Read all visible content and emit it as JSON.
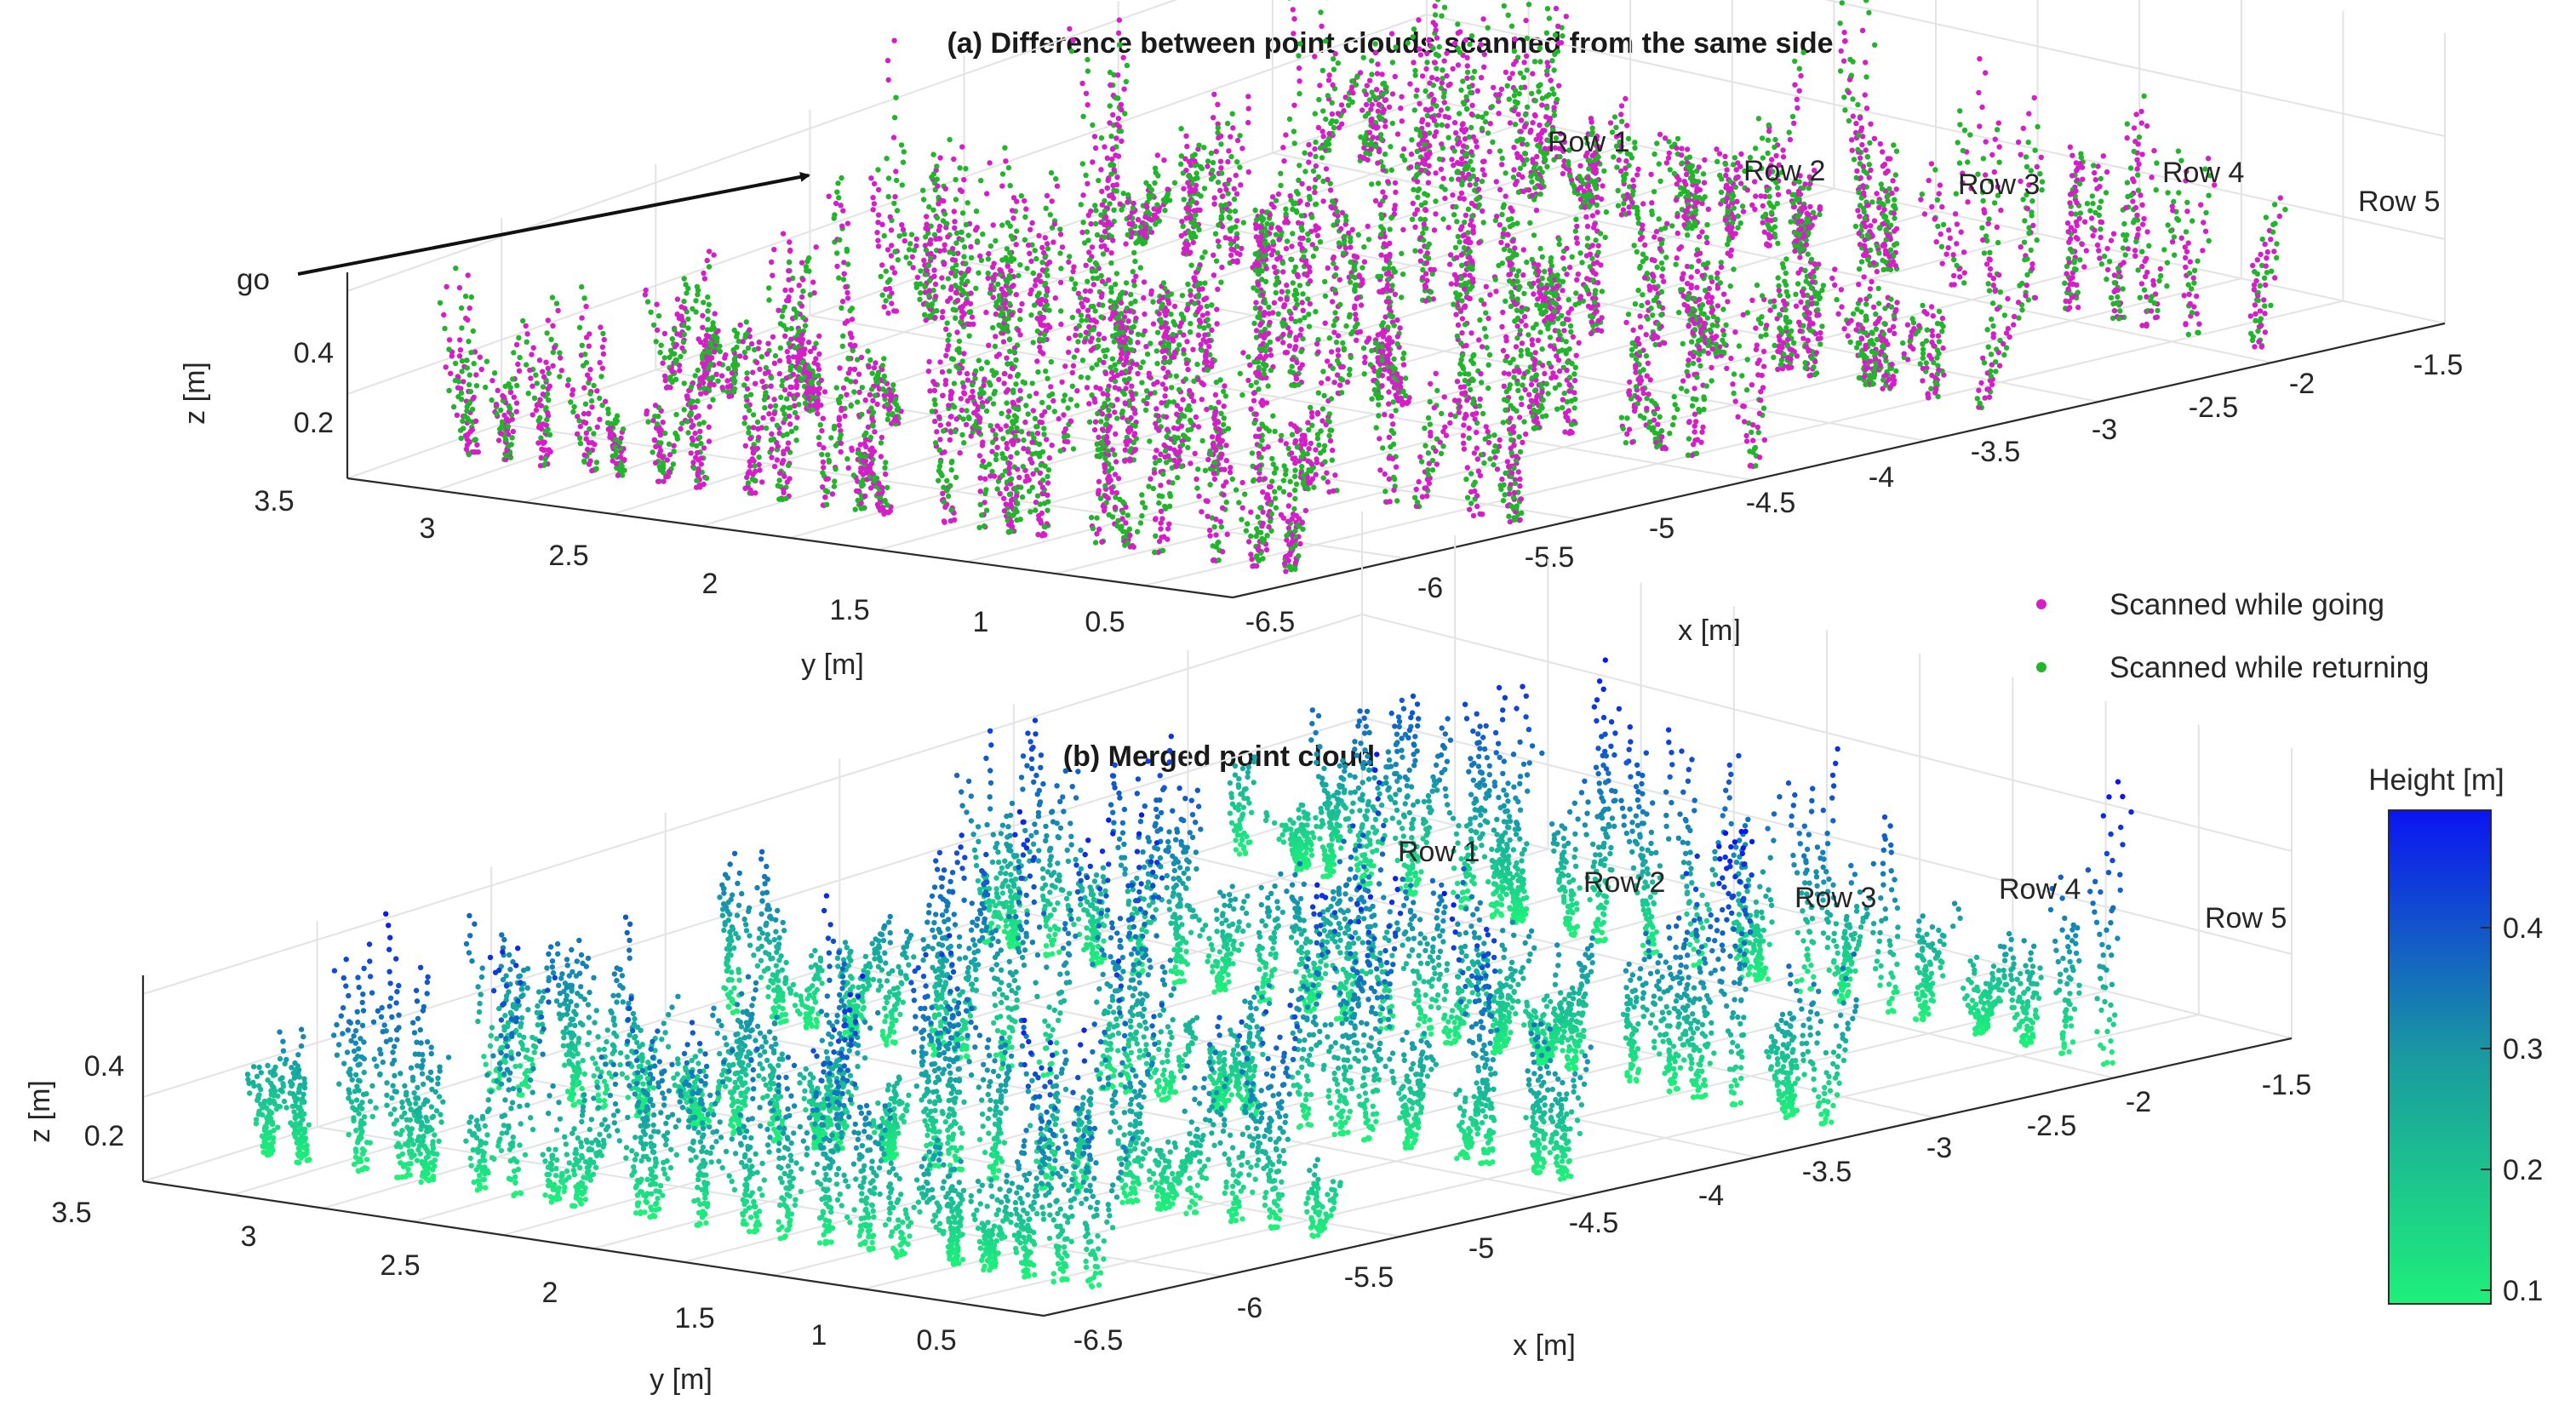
{
  "colors": {
    "going": "#d41fc8",
    "returning": "#22b42a",
    "cmap_low": "#1ef07a",
    "cmap_high": "#0a14f2"
  },
  "chart_data": [
    {
      "type": "scatter",
      "projection": "3d",
      "title": "(a) Difference between point clouds scanned from the same side",
      "xlabel": "x [m]",
      "ylabel": "y [m]",
      "zlabel": "z [m]",
      "xticks": [
        "-6.5",
        "-6",
        "-5.5",
        "-5",
        "-4.5",
        "-4",
        "-3.5",
        "-3",
        "-2.5",
        "-2",
        "-1.5"
      ],
      "yticks": [
        "3.5",
        "3",
        "2.5",
        "2",
        "1.5",
        "1",
        "0.5"
      ],
      "zticks": [
        "0.2",
        "0.4"
      ],
      "xlim": [
        -6.8,
        -1.4
      ],
      "ylim": [
        0.3,
        3.7
      ],
      "zlim": [
        0.1,
        0.5
      ],
      "grid": true,
      "row_labels": [
        "Row 1",
        "Row 2",
        "Row 3",
        "Row 4",
        "Row 5"
      ],
      "annotation": "go",
      "legend_position": "bottom-right",
      "series": [
        {
          "name": "Scanned while going",
          "color": "#d41fc8"
        },
        {
          "name": "Scanned while returning",
          "color": "#22b42a"
        }
      ],
      "rows": [
        {
          "label": "Row 1",
          "y": 3.2
        },
        {
          "label": "Row 2",
          "y": 2.4
        },
        {
          "label": "Row 3",
          "y": 1.7
        },
        {
          "label": "Row 4",
          "y": 1.0
        },
        {
          "label": "Row 5",
          "y": 0.5
        }
      ]
    },
    {
      "type": "scatter",
      "projection": "3d",
      "title": "(b) Merged point cloud",
      "xlabel": "x [m]",
      "ylabel": "y [m]",
      "zlabel": "z [m]",
      "xticks": [
        "-6.5",
        "-6",
        "-5.5",
        "-5",
        "-4.5",
        "-4",
        "-3.5",
        "-3",
        "-2.5",
        "-2",
        "-1.5"
      ],
      "yticks": [
        "3.5",
        "3",
        "2.5",
        "2",
        "1.5",
        "1",
        "0.5"
      ],
      "zticks": [
        "0.2",
        "0.4"
      ],
      "xlim": [
        -6.8,
        -1.4
      ],
      "ylim": [
        0.3,
        3.7
      ],
      "zlim": [
        0.1,
        0.5
      ],
      "grid": true,
      "row_labels": [
        "Row 1",
        "Row 2",
        "Row 3",
        "Row 4",
        "Row 5"
      ],
      "colorbar": {
        "label": "Height [m]",
        "ticks": [
          "0.4",
          "0.3",
          "0.2",
          "0.1"
        ],
        "range": [
          0.08,
          0.49
        ]
      }
    }
  ]
}
